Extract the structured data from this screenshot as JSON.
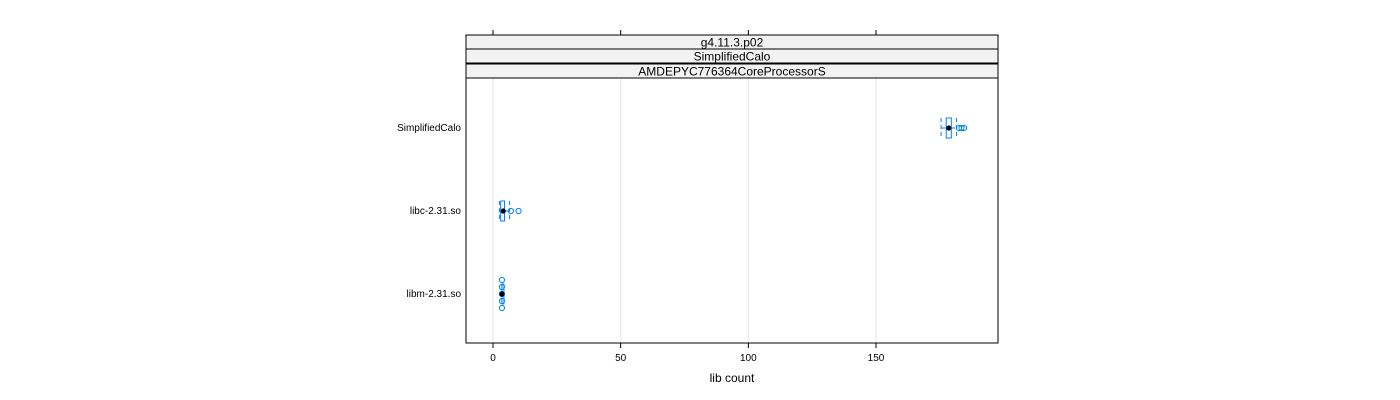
{
  "chart_data": {
    "type": "boxplot",
    "xlabel": "lib count",
    "xlim": [
      -10,
      198
    ],
    "x_ticks": [
      0,
      50,
      100,
      150
    ],
    "grid": true,
    "strips": [
      "g4.11.3.p02",
      "SimplifiedCalo",
      "AMDEPYC776364CoreProcessorS"
    ],
    "categories": [
      "SimplifiedCalo",
      "libc-2.31.so",
      "libm-2.31.so"
    ],
    "boxes": [
      {
        "category": "SimplifiedCalo",
        "whisker_low": 175.5,
        "q1": 177.5,
        "median": 178.5,
        "q3": 179.5,
        "whisker_high": 181.5,
        "outliers": [
          182.5,
          183.5,
          184.5
        ]
      },
      {
        "category": "libc-2.31.so",
        "whisker_low": 2.5,
        "q1": 3.0,
        "median": 4.0,
        "q3": 4.5,
        "whisker_high": 6.5,
        "outliers": [
          7.0,
          10.0
        ]
      },
      {
        "category": "libm-2.31.so",
        "whisker_low": 3.5,
        "q1": 3.5,
        "median": 3.5,
        "q3": 3.5,
        "whisker_high": 3.5,
        "outliers": [
          3.5,
          3.5,
          3.5,
          3.5,
          3.5
        ]
      }
    ],
    "colors": {
      "box": "#0080ff",
      "median": "#000000",
      "strip_bg": "#f2f2f2",
      "grid": "#e6e6e6"
    }
  }
}
